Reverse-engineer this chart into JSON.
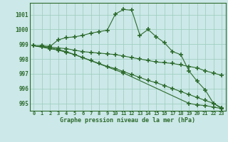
{
  "title": "Graphe pression niveau de la mer (hPa)",
  "background_color": "#cce8e8",
  "grid_color": "#99ccbb",
  "line_color": "#2d6b2d",
  "xlim": [
    -0.5,
    23.5
  ],
  "ylim": [
    994.5,
    1001.8
  ],
  "yticks": [
    995,
    996,
    997,
    998,
    999,
    1000,
    1001
  ],
  "xticks": [
    0,
    1,
    2,
    3,
    4,
    5,
    6,
    7,
    8,
    9,
    10,
    11,
    12,
    13,
    14,
    15,
    16,
    17,
    18,
    19,
    20,
    21,
    22,
    23
  ],
  "series": [
    {
      "x": [
        0,
        1,
        2,
        3,
        4,
        5,
        6,
        7,
        8,
        9,
        10,
        11,
        12,
        13,
        14,
        15,
        16,
        17,
        18,
        19,
        20,
        21,
        22,
        23
      ],
      "y": [
        998.9,
        998.9,
        998.85,
        999.3,
        999.45,
        999.5,
        999.6,
        999.75,
        999.85,
        999.95,
        1001.05,
        1001.35,
        1001.3,
        999.6,
        1000.0,
        999.5,
        999.1,
        998.5,
        998.3,
        997.2,
        996.5,
        995.9,
        995.0,
        994.65
      ]
    },
    {
      "x": [
        0,
        1,
        2,
        3,
        4,
        5,
        6,
        7,
        8,
        9,
        10,
        11,
        12,
        13,
        14,
        15,
        16,
        17,
        18,
        19,
        20,
        21,
        22,
        23
      ],
      "y": [
        998.9,
        998.85,
        998.8,
        998.75,
        998.7,
        998.6,
        998.5,
        998.45,
        998.4,
        998.35,
        998.3,
        998.2,
        998.1,
        998.0,
        997.9,
        997.8,
        997.75,
        997.7,
        997.6,
        997.5,
        997.4,
        997.2,
        997.05,
        996.9
      ]
    },
    {
      "x": [
        0,
        1,
        2,
        3,
        4,
        5,
        6,
        7,
        8,
        9,
        10,
        11,
        12,
        13,
        14,
        15,
        16,
        17,
        18,
        19,
        20,
        21,
        22,
        23
      ],
      "y": [
        998.9,
        998.8,
        998.7,
        998.6,
        998.45,
        998.3,
        998.1,
        997.9,
        997.7,
        997.5,
        997.35,
        997.15,
        996.95,
        996.75,
        996.55,
        996.4,
        996.2,
        996.0,
        995.8,
        995.6,
        995.4,
        995.2,
        995.0,
        994.7
      ]
    },
    {
      "x": [
        0,
        2,
        3,
        4,
        5,
        11,
        19,
        20,
        21,
        22,
        23
      ],
      "y": [
        998.9,
        998.75,
        998.65,
        998.5,
        998.3,
        997.05,
        995.0,
        994.9,
        994.85,
        994.75,
        994.65
      ]
    }
  ]
}
